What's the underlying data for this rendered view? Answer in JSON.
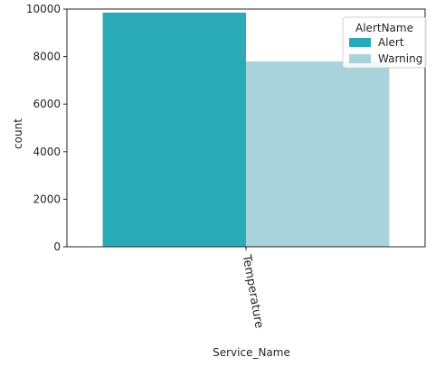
{
  "chart_data": {
    "type": "bar",
    "title": "",
    "xlabel": "Service_Name",
    "ylabel": "count",
    "categories": [
      "Temperature"
    ],
    "series": [
      {
        "name": "Alert",
        "values": [
          9850
        ],
        "color": "#2aa9b6"
      },
      {
        "name": "Warning",
        "values": [
          7800
        ],
        "color": "#a9d3db"
      }
    ],
    "ylim": [
      0,
      10000
    ],
    "yticks": [
      0,
      2000,
      4000,
      6000,
      8000,
      10000
    ],
    "grid": false,
    "legend": {
      "title": "AlertName",
      "placement": "top-right"
    }
  }
}
